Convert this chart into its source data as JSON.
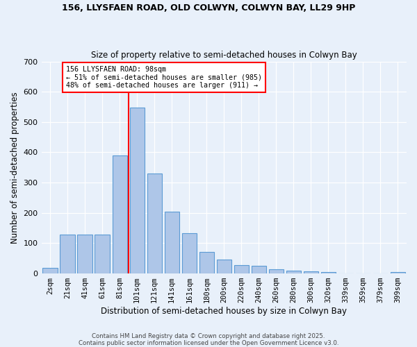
{
  "title1": "156, LLYSFAEN ROAD, OLD COLWYN, COLWYN BAY, LL29 9HP",
  "title2": "Size of property relative to semi-detached houses in Colwyn Bay",
  "xlabel": "Distribution of semi-detached houses by size in Colwyn Bay",
  "ylabel": "Number of semi-detached properties",
  "bar_labels": [
    "2sqm",
    "21sqm",
    "41sqm",
    "61sqm",
    "81sqm",
    "101sqm",
    "121sqm",
    "141sqm",
    "161sqm",
    "180sqm",
    "200sqm",
    "220sqm",
    "240sqm",
    "260sqm",
    "280sqm",
    "300sqm",
    "320sqm",
    "339sqm",
    "359sqm",
    "379sqm",
    "399sqm"
  ],
  "bar_values": [
    18,
    128,
    128,
    128,
    390,
    548,
    330,
    203,
    134,
    72,
    45,
    27,
    25,
    14,
    10,
    6,
    4,
    1,
    0,
    0,
    5
  ],
  "bar_color": "#aec6e8",
  "bar_edge_color": "#5b9bd5",
  "annotation_text": "156 LLYSFAEN ROAD: 98sqm\n← 51% of semi-detached houses are smaller (985)\n48% of semi-detached houses are larger (911) →",
  "annotation_box_color": "white",
  "annotation_box_edge_color": "red",
  "ref_line_color": "red",
  "background_color": "#e8f0fa",
  "footer_text": "Contains HM Land Registry data © Crown copyright and database right 2025.\nContains public sector information licensed under the Open Government Licence v3.0.",
  "ylim": [
    0,
    700
  ],
  "yticks": [
    0,
    100,
    200,
    300,
    400,
    500,
    600,
    700
  ],
  "ref_line_index": 5,
  "figwidth": 6.0,
  "figheight": 5.0,
  "dpi": 100
}
